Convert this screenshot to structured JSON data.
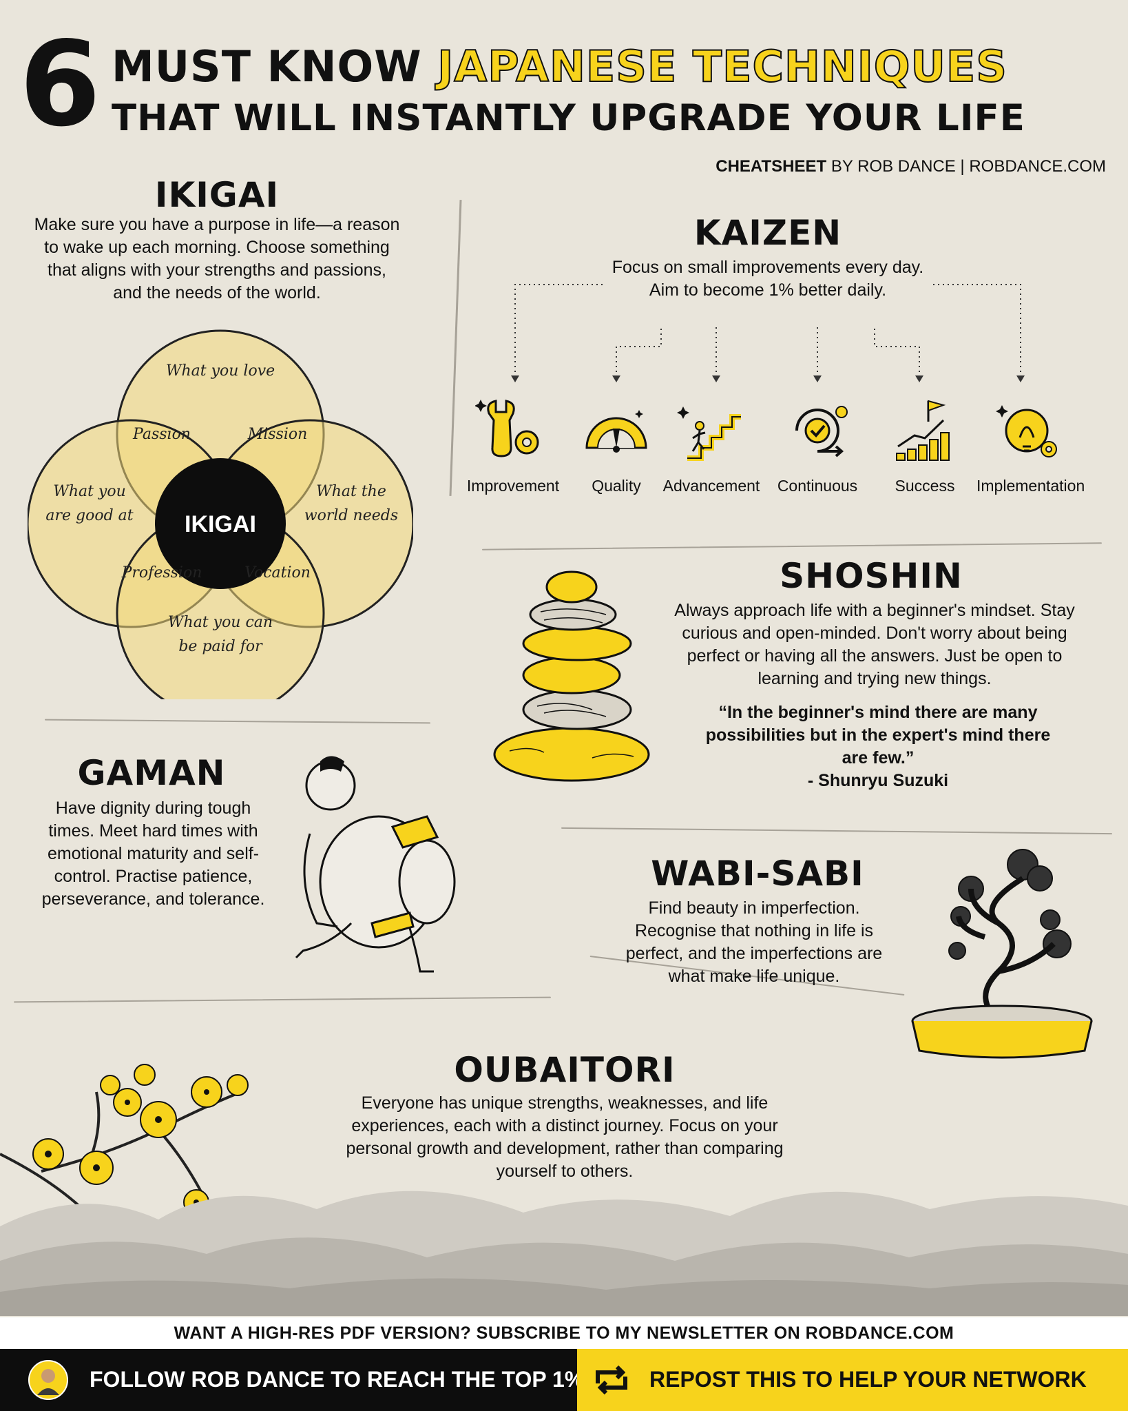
{
  "header": {
    "number": "6",
    "line1_black": "MUST KNOW",
    "line1_highlight": "JAPANESE TECHNIQUES",
    "line2": "THAT WILL INSTANTLY UPGRADE YOUR LIFE",
    "credit_bold": "CHEATSHEET",
    "credit_rest": "BY ROB DANCE | ROBDANCE.COM"
  },
  "ikigai": {
    "title": "IKIGAI",
    "body": "Make sure you have a purpose in life—a reason to wake up each morning. Choose something that aligns with your strengths and passions, and the needs of the world.",
    "venn": {
      "center": "IKIGAI",
      "top": "What you love",
      "left_1": "What you",
      "left_2": "are good at",
      "right_1": "What the",
      "right_2": "world needs",
      "bottom_1": "What you can",
      "bottom_2": "be paid for",
      "passion": "Passion",
      "mission": "Mission",
      "profession": "Profession",
      "vocation": "Vocation"
    }
  },
  "kaizen": {
    "title": "KAIZEN",
    "body_1": "Focus on small improvements every day.",
    "body_2": "Aim to become 1% better daily.",
    "items": [
      {
        "label": "Improvement",
        "icon": "wrench-gear-icon"
      },
      {
        "label": "Quality",
        "icon": "gauge-icon"
      },
      {
        "label": "Advancement",
        "icon": "stairs-climber-icon"
      },
      {
        "label": "Continuous",
        "icon": "cycle-check-icon"
      },
      {
        "label": "Success",
        "icon": "bar-chart-flag-icon"
      },
      {
        "label": "Implementation",
        "icon": "lightbulb-gear-icon"
      }
    ]
  },
  "shoshin": {
    "title": "SHOSHIN",
    "body": "Always approach life with a beginner's mindset. Stay curious and open-minded. Don't worry about being perfect or having all the answers. Just be open to learning and trying new things.",
    "quote": "“In the beginner's mind there are many possibilities but in the expert's mind there are few.”",
    "author": "- Shunryu Suzuki"
  },
  "gaman": {
    "title": "GAMAN",
    "body": "Have dignity during tough times. Meet hard times with emotional maturity and self-control. Practise patience, perseverance, and tolerance."
  },
  "wabi_sabi": {
    "title": "WABI-SABI",
    "body": "Find beauty in imperfection. Recognise that nothing in life is perfect, and the imperfections are what make life unique."
  },
  "oubaitori": {
    "title": "OUBAITORI",
    "body": "Everyone has unique strengths, weaknesses, and life experiences, each with a distinct journey. Focus on your personal growth and development, rather than comparing yourself to others."
  },
  "footer": {
    "newsletter": "WANT A HIGH-RES PDF VERSION? SUBSCRIBE TO MY NEWSLETTER ON ROBDANCE.COM",
    "follow": "FOLLOW ROB DANCE TO REACH THE TOP 1%",
    "repost": "REPOST THIS TO HELP YOUR NETWORK"
  },
  "colors": {
    "accent_yellow": "#f7d31c",
    "paper": "#e9e5db",
    "ink": "#111111"
  }
}
